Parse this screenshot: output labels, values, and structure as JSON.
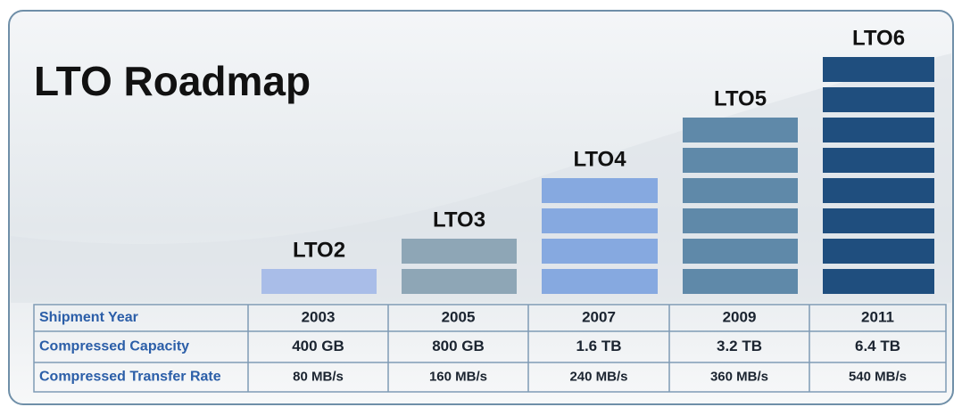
{
  "title": "LTO Roadmap",
  "generations": [
    "LTO2",
    "LTO3",
    "LTO4",
    "LTO5",
    "LTO6"
  ],
  "table": {
    "rows": [
      {
        "label": "Shipment Year",
        "cells": [
          "2003",
          "2005",
          "2007",
          "2009",
          "2011"
        ]
      },
      {
        "label": "Compressed Capacity",
        "cells": [
          "400 GB",
          "800 GB",
          "1.6 TB",
          "3.2 TB",
          "6.4 TB"
        ]
      },
      {
        "label": "Compressed Transfer Rate",
        "cells": [
          "80 MB/s",
          "160 MB/s",
          "240 MB/s",
          "360 MB/s",
          "540 MB/s"
        ]
      }
    ]
  }
}
